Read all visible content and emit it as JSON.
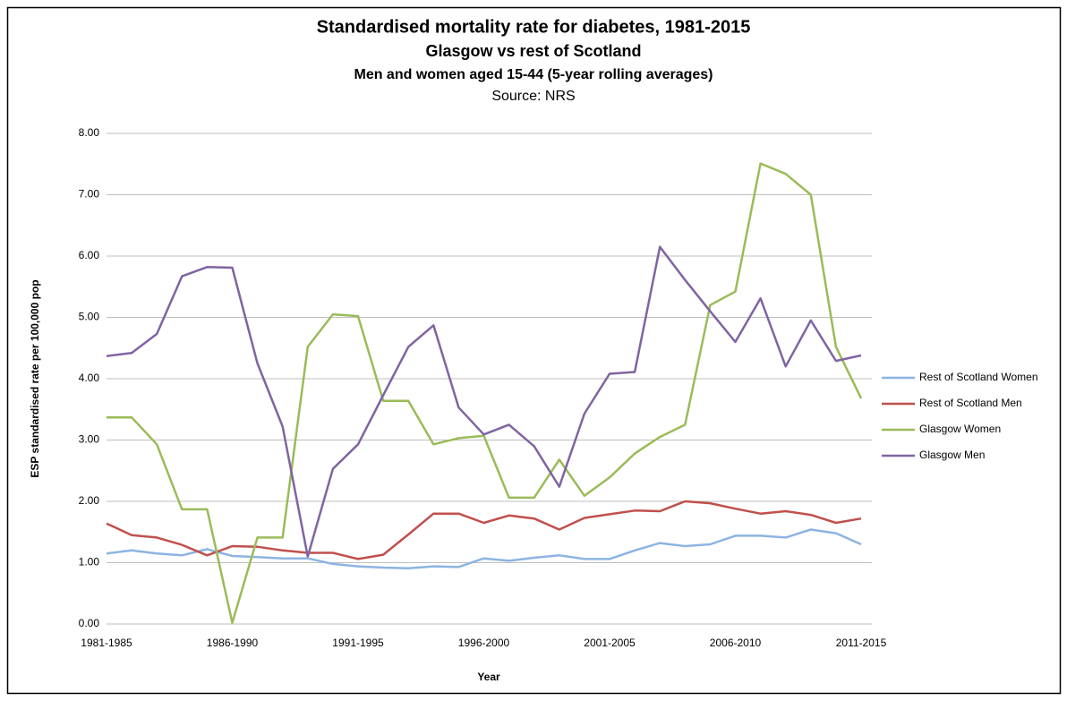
{
  "chart_data": {
    "type": "line",
    "title": "Standardised mortality rate for diabetes, 1981-2015",
    "subtitle": "Glasgow vs rest of Scotland",
    "subtitle2": "Men and women aged 15-44 (5-year rolling averages)",
    "source": "Source: NRS",
    "x_label": "Year",
    "y_label": "ESP standardised rate per 100,000 pop",
    "categories": [
      "1981-1985",
      null,
      null,
      null,
      null,
      "1986-1990",
      null,
      null,
      null,
      null,
      "1991-1995",
      null,
      null,
      null,
      null,
      "1996-2000",
      null,
      null,
      null,
      null,
      "2001-2005",
      null,
      null,
      null,
      null,
      "2006-2010",
      null,
      null,
      null,
      null,
      "2011-2015"
    ],
    "series": [
      {
        "name": "Rest of Scotland Women",
        "color": "#8db4e2",
        "values": [
          1.15,
          1.2,
          1.15,
          1.12,
          1.22,
          1.11,
          1.09,
          1.07,
          1.07,
          0.98,
          0.94,
          0.92,
          0.91,
          0.94,
          0.93,
          1.07,
          1.03,
          1.08,
          1.12,
          1.06,
          1.06,
          1.2,
          1.32,
          1.27,
          1.3,
          1.44,
          1.44,
          1.41,
          1.54,
          1.48,
          1.3
        ]
      },
      {
        "name": "Rest of Scotland Men",
        "color": "#c0504d",
        "values": [
          1.64,
          1.45,
          1.41,
          1.29,
          1.12,
          1.27,
          1.26,
          1.2,
          1.16,
          1.16,
          1.06,
          1.13,
          1.46,
          1.8,
          1.8,
          1.65,
          1.77,
          1.72,
          1.54,
          1.73,
          1.79,
          1.85,
          1.84,
          2.0,
          1.97,
          1.88,
          1.8,
          1.84,
          1.78,
          1.65,
          1.72
        ]
      },
      {
        "name": "Glasgow Women",
        "color": "#9bbb59",
        "values": [
          3.37,
          3.37,
          2.93,
          1.87,
          1.87,
          0.02,
          1.41,
          1.41,
          4.52,
          5.05,
          5.02,
          3.64,
          3.64,
          2.93,
          3.03,
          3.07,
          2.06,
          2.06,
          2.68,
          2.09,
          2.39,
          2.78,
          3.05,
          3.25,
          5.2,
          5.42,
          7.51,
          7.34,
          7.0,
          4.52,
          3.68
        ]
      },
      {
        "name": "Glasgow Men",
        "color": "#8064a2",
        "values": [
          4.37,
          4.42,
          4.73,
          5.67,
          5.82,
          5.81,
          4.25,
          3.22,
          1.1,
          2.53,
          2.93,
          3.73,
          4.52,
          4.87,
          3.53,
          3.09,
          3.25,
          2.9,
          2.24,
          3.43,
          4.08,
          4.11,
          6.15,
          5.61,
          5.1,
          4.6,
          5.31,
          4.2,
          4.95,
          4.29,
          4.38
        ]
      }
    ],
    "ylim": [
      0,
      8
    ],
    "yticks": [
      {
        "value": 0,
        "label": "0.00"
      },
      {
        "value": 1,
        "label": "1.00"
      },
      {
        "value": 2,
        "label": "2.00"
      },
      {
        "value": 3,
        "label": "3.00"
      },
      {
        "value": 4,
        "label": "4.00"
      },
      {
        "value": 5,
        "label": "5.00"
      },
      {
        "value": 6,
        "label": "6.00"
      },
      {
        "value": 7,
        "label": "7.00"
      },
      {
        "value": 8,
        "label": "8.00"
      }
    ],
    "grid": true,
    "legend": "right"
  }
}
